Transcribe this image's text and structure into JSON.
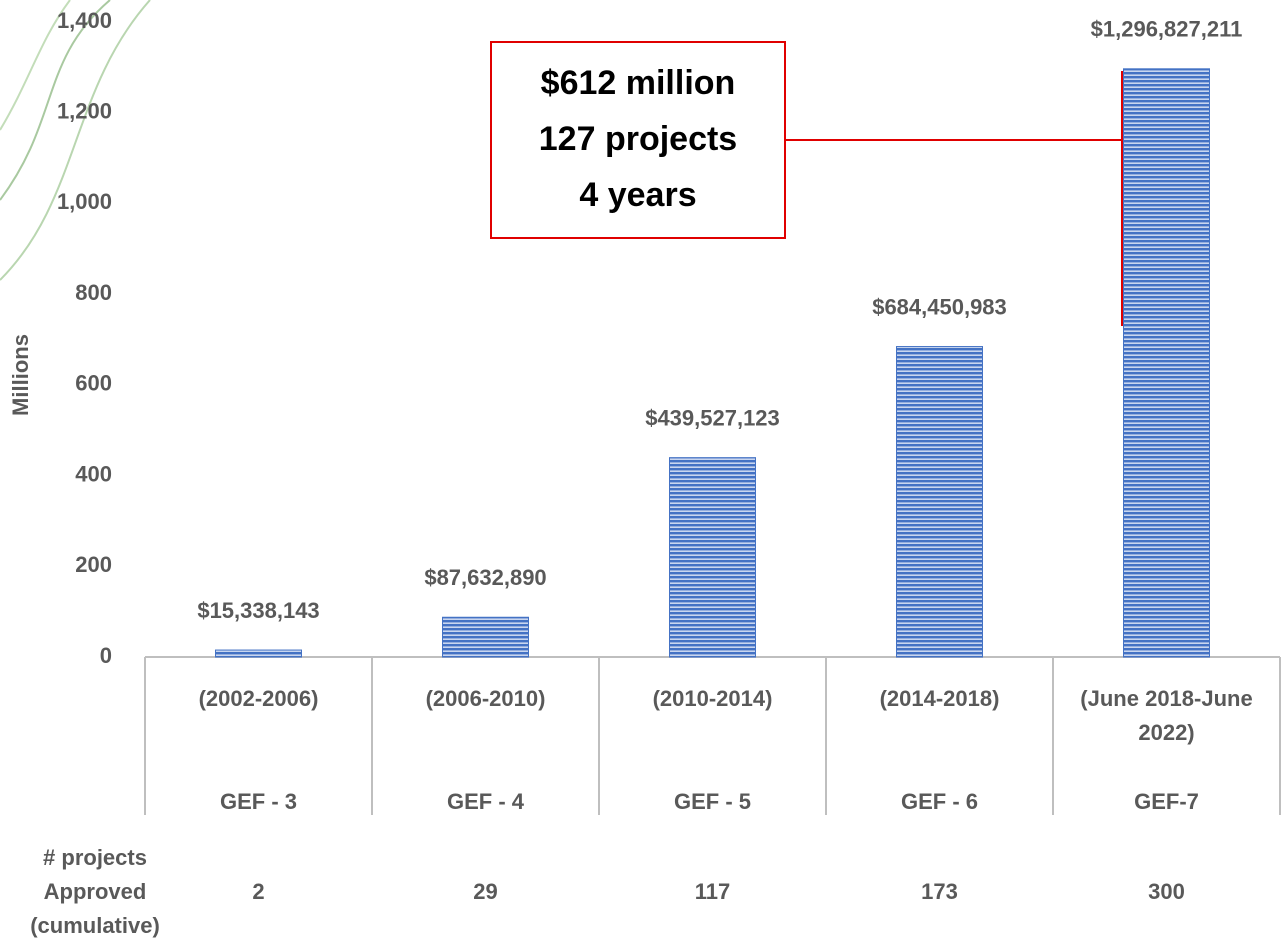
{
  "chart_data": {
    "type": "bar",
    "y_label": "Millions",
    "categories": [
      "(2002-2006)",
      "(2006-2010)",
      "(2010-2014)",
      "(2014-2018)",
      "(June 2018-June 2022)"
    ],
    "groups": [
      "GEF - 3",
      "GEF - 4",
      "GEF - 5",
      "GEF - 6",
      "GEF-7"
    ],
    "values": [
      15.338143,
      87.63289,
      439.527123,
      684.450983,
      1296.827211
    ],
    "value_labels": [
      "$15,338,143",
      "$87,632,890",
      "$439,527,123",
      "$684,450,983",
      "$1,296,827,211"
    ],
    "color": "#4472c4",
    "ylim": [
      0,
      1400
    ],
    "yticks": [
      0,
      200,
      400,
      600,
      800,
      {
        "value": 1000,
        "label": "1,000"
      },
      {
        "value": 1200,
        "label": "1,200"
      },
      {
        "value": 1400,
        "label": "1,400"
      }
    ],
    "annotation": [
      "$612 million",
      "127 projects",
      "4 years"
    ],
    "projects_label": "# projects Approved (cumulative)",
    "project_counts": [
      2,
      29,
      117,
      173,
      300
    ]
  }
}
